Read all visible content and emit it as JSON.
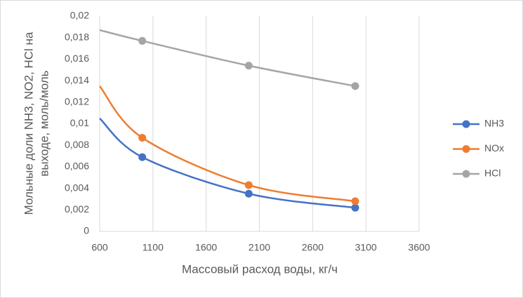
{
  "chart_data": {
    "type": "line",
    "xlabel": "Массовый расход воды, кг/ч",
    "ylabel": [
      "Мольные доли NH3, NO2, HCl на",
      "выходе, моль/моль"
    ],
    "x": [
      600,
      1000,
      2000,
      3000
    ],
    "series": [
      {
        "name": "NH3",
        "color": "#4472c4",
        "values": [
          0.0105,
          0.0069,
          0.0035,
          0.0022
        ]
      },
      {
        "name": "NOx",
        "color": "#ed7d31",
        "values": [
          0.0135,
          0.0087,
          0.0043,
          0.0028
        ]
      },
      {
        "name": "HCl",
        "color": "#a5a5a5",
        "values": [
          0.0187,
          0.0177,
          0.0154,
          0.0135
        ]
      }
    ],
    "xlim": [
      600,
      3600
    ],
    "xticks": [
      600,
      1100,
      1600,
      2100,
      2600,
      3100,
      3600
    ],
    "ylim": [
      0,
      0.02
    ],
    "yticks": [
      0,
      {
        "value": 0.002,
        "label": "0,002"
      },
      {
        "value": 0.004,
        "label": "0,004"
      },
      {
        "value": 0.006,
        "label": "0,006"
      },
      {
        "value": 0.008,
        "label": "0,008"
      },
      {
        "value": 0.01,
        "label": "0,01"
      },
      {
        "value": 0.012,
        "label": "0,012"
      },
      {
        "value": 0.014,
        "label": "0,014"
      },
      {
        "value": 0.016,
        "label": "0,016"
      },
      {
        "value": 0.018,
        "label": "0,018"
      },
      {
        "value": 0.02,
        "label": "0,02"
      }
    ],
    "grid": "x",
    "smooth": true,
    "legend": "right"
  }
}
